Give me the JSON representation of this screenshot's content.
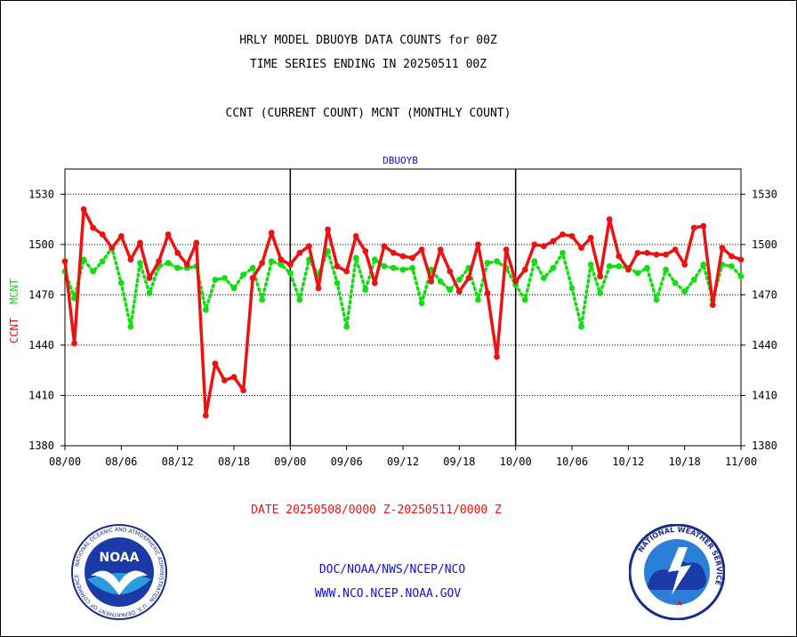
{
  "header": {
    "title_line1": "HRLY MODEL DBUOYB DATA COUNTS for 00Z",
    "title_line2": "TIME SERIES ENDING IN 20250511 00Z",
    "subtitle": "CCNT (CURRENT COUNT) MCNT (MONTHLY COUNT)"
  },
  "footer": {
    "date_range": "DATE 20250508/0000 Z-20250511/0000 Z",
    "org": "DOC/NOAA/NWS/NCEP/NCO",
    "url": "WWW.NCO.NCEP.NOAA.GOV"
  },
  "logos": {
    "noaa_text": "NOAA",
    "noaa_ring": "NATIONAL OCEANIC AND ATMOSPHERIC ADMINISTRATION · U.S. DEPARTMENT OF COMMERCE",
    "nws_ring": "NATIONAL WEATHER SERVICE"
  },
  "colors": {
    "ccnt": "#ee1111",
    "mcnt": "#11dd11",
    "title_blue": "#1111cc",
    "footer_red": "#ee1111"
  },
  "chart_data": {
    "type": "line",
    "title": "DBUOYB",
    "ylabel_left": "CCNT",
    "ylabel_right": "MCNT",
    "ylim": [
      1380,
      1545
    ],
    "yticks": [
      1380,
      1410,
      1440,
      1470,
      1500,
      1530
    ],
    "x_tick_labels": [
      "08/00",
      "08/06",
      "08/12",
      "08/18",
      "09/00",
      "09/06",
      "09/12",
      "09/18",
      "10/00",
      "10/06",
      "10/12",
      "10/18",
      "11/00"
    ],
    "x_range_hours": [
      0,
      72
    ],
    "legend": "none",
    "grid": "horizontal dotted",
    "series": [
      {
        "name": "CCNT",
        "style": "solid",
        "x": [
          0,
          1,
          2,
          3,
          4,
          5,
          6,
          7,
          8,
          9,
          10,
          11,
          12,
          13,
          14,
          15,
          16,
          17,
          18,
          19,
          20,
          21,
          22,
          23,
          24,
          25,
          26,
          27,
          28,
          29,
          30,
          31,
          32,
          33,
          34,
          35,
          36,
          37,
          38,
          39,
          40,
          41,
          42,
          43,
          44,
          45,
          46,
          47,
          48,
          49,
          50,
          51,
          52,
          53,
          54,
          55,
          56,
          57,
          58,
          59,
          60,
          61,
          62,
          63,
          64,
          65,
          66,
          67,
          68,
          69,
          70,
          71,
          72
        ],
        "values": [
          1490,
          1441,
          1521,
          1510,
          1506,
          1498,
          1505,
          1491,
          1501,
          1480,
          1490,
          1506,
          1495,
          1488,
          1501,
          1398,
          1429,
          1419,
          1421,
          1413,
          1480,
          1489,
          1507,
          1491,
          1488,
          1495,
          1499,
          1474,
          1509,
          1487,
          1484,
          1505,
          1496,
          1477,
          1499,
          1495,
          1493,
          1492,
          1497,
          1478,
          1497,
          1484,
          1472,
          1480,
          1500,
          1471,
          1433,
          1497,
          1478,
          1485,
          1500,
          1499,
          1502,
          1506,
          1505,
          1498,
          1504,
          1481,
          1515,
          1493,
          1485,
          1495,
          1495,
          1494,
          1494,
          1497,
          1488,
          1510,
          1511,
          1464,
          1498,
          1493,
          1491
        ]
      },
      {
        "name": "MCNT",
        "style": "dotted",
        "x": [
          0,
          1,
          2,
          3,
          4,
          5,
          6,
          7,
          8,
          9,
          10,
          11,
          12,
          13,
          14,
          15,
          16,
          17,
          18,
          19,
          20,
          21,
          22,
          23,
          24,
          25,
          26,
          27,
          28,
          29,
          30,
          31,
          32,
          33,
          34,
          35,
          36,
          37,
          38,
          39,
          40,
          41,
          42,
          43,
          44,
          45,
          46,
          47,
          48,
          49,
          50,
          51,
          52,
          53,
          54,
          55,
          56,
          57,
          58,
          59,
          60,
          61,
          62,
          63,
          64,
          65,
          66,
          67,
          68,
          69,
          70,
          71,
          72
        ],
        "values": [
          1484,
          1468,
          1491,
          1484,
          1490,
          1498,
          1477,
          1451,
          1489,
          1471,
          1487,
          1489,
          1486,
          1486,
          1487,
          1461,
          1479,
          1480,
          1474,
          1482,
          1486,
          1467,
          1490,
          1488,
          1483,
          1467,
          1491,
          1482,
          1496,
          1477,
          1451,
          1492,
          1473,
          1491,
          1487,
          1486,
          1485,
          1486,
          1465,
          1485,
          1478,
          1473,
          1479,
          1486,
          1467,
          1489,
          1490,
          1486,
          1476,
          1467,
          1490,
          1480,
          1486,
          1495,
          1474,
          1451,
          1488,
          1471,
          1487,
          1487,
          1486,
          1483,
          1486,
          1467,
          1485,
          1477,
          1472,
          1479,
          1488,
          1467,
          1488,
          1487,
          1481
        ]
      }
    ]
  }
}
